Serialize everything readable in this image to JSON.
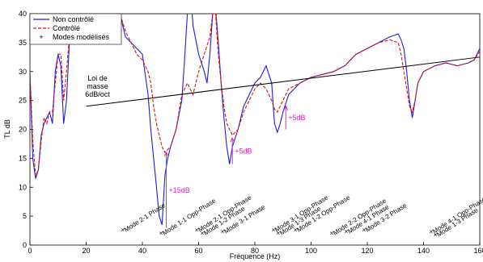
{
  "chart_data": {
    "type": "line",
    "xlabel": "Fréquence (Hz)",
    "ylabel": "TL dB",
    "xlim": [
      0,
      160
    ],
    "xticks": [
      0,
      20,
      40,
      60,
      80,
      100,
      120,
      140,
      160
    ],
    "ylim": [
      0,
      40
    ],
    "yticks": [
      0,
      5,
      10,
      15,
      20,
      25,
      30,
      35,
      40
    ],
    "legend": "upper left",
    "series": [
      {
        "name": "Non contrôlé",
        "color": "#1f1fd0",
        "style": "solid",
        "x": [
          0,
          1,
          2,
          3,
          4,
          5,
          6,
          7,
          8,
          9,
          10,
          11,
          12,
          13,
          14,
          15,
          20,
          30,
          32,
          34,
          36,
          38,
          40,
          42,
          43,
          44,
          45,
          46,
          47,
          48,
          49,
          50,
          52,
          54,
          55,
          56,
          57,
          58,
          60,
          62,
          63,
          64,
          65,
          66,
          67,
          68,
          69,
          70,
          71,
          72,
          74,
          76,
          78,
          80,
          82,
          84,
          86,
          87,
          88,
          89,
          90,
          92,
          96,
          100,
          104,
          108,
          112,
          116,
          120,
          124,
          128,
          131,
          132,
          133,
          134,
          135,
          136,
          137,
          138,
          140,
          144,
          148,
          152,
          156,
          158,
          160
        ],
        "values": [
          30,
          15,
          11.5,
          13,
          19,
          21,
          22,
          23,
          21,
          30,
          33,
          31,
          21,
          25,
          35,
          40,
          45,
          45,
          40,
          36,
          35,
          34,
          33,
          26,
          20,
          15,
          10,
          5,
          3.5,
          12,
          15,
          17,
          20,
          25,
          32,
          40,
          45,
          38,
          33,
          30,
          28,
          33,
          40,
          41,
          35,
          28,
          22,
          17,
          14,
          17,
          20,
          24,
          26,
          28,
          29,
          31,
          28,
          21,
          19.5,
          21,
          23,
          26,
          28,
          29,
          29.5,
          30,
          31,
          33,
          34,
          35,
          36,
          36.5,
          35.5,
          34,
          30,
          25,
          22,
          25,
          28,
          30,
          31,
          31.5,
          31,
          31.5,
          32,
          34
        ]
      },
      {
        "name": "Contrôlé",
        "color": "#e01010",
        "style": "dashed",
        "x": [
          0,
          1,
          2,
          3,
          4,
          5,
          6,
          7,
          8,
          9,
          10,
          11,
          12,
          13,
          14,
          15,
          20,
          30,
          32,
          34,
          36,
          38,
          40,
          42,
          43,
          44,
          45,
          46,
          47,
          48,
          50,
          52,
          54,
          56,
          58,
          60,
          62,
          64,
          65,
          66,
          67,
          68,
          69,
          70,
          72,
          74,
          76,
          78,
          80,
          82,
          84,
          86,
          87,
          88,
          90,
          92,
          96,
          100,
          104,
          108,
          112,
          116,
          120,
          124,
          128,
          131,
          132,
          133,
          134,
          135,
          136,
          137,
          138,
          140,
          144,
          148,
          152,
          156,
          158,
          160
        ],
        "values": [
          30,
          18,
          12,
          13,
          18,
          22,
          21,
          23,
          23,
          28,
          33,
          33,
          25,
          30,
          36,
          40,
          45,
          45,
          40,
          37,
          35,
          33,
          32,
          30,
          28,
          24,
          21,
          19,
          17,
          16,
          17,
          20,
          26,
          28,
          26,
          30,
          33,
          36,
          40,
          40,
          33,
          28,
          24,
          21,
          19,
          20,
          23,
          25,
          27,
          28,
          27,
          25,
          23.5,
          23,
          25,
          27,
          28,
          29,
          29.5,
          30,
          31,
          33,
          34,
          35,
          35.5,
          35,
          33,
          30,
          27,
          24,
          23,
          25,
          28,
          30,
          31,
          31.5,
          31,
          31.5,
          32,
          33.5
        ]
      }
    ],
    "modes_name": "Modes modélisés",
    "mass_law": {
      "label": "Loi de\nmasse\n6dB/oct",
      "x": [
        20,
        160
      ],
      "values": [
        24,
        32.5
      ]
    },
    "modes": [
      {
        "label": "Mode 2-1 Phase",
        "x": 33
      },
      {
        "label": "Mode 1-1 Opp-Phase",
        "x": 46.6
      },
      {
        "label": "Mode 2-1 Opp-Phase",
        "x": 59.3
      },
      {
        "label": "Mode 1-2 Phase",
        "x": 61.3
      },
      {
        "label": "Mode 3-1 Phase",
        "x": 68.5
      },
      {
        "label": "Mode 3-1 Opp-Phase",
        "x": 86.6
      },
      {
        "label": "Mode 1-3 Phase",
        "x": 88.3
      },
      {
        "label": "Mode 1-2 Opp-Phase",
        "x": 94.4
      },
      {
        "label": "Mode 2-2 Opp-Phase",
        "x": 107.3
      },
      {
        "label": "Mode 4-1 Phase",
        "x": 112.5
      },
      {
        "label": "Mode 3-2 Phase",
        "x": 118.8
      },
      {
        "label": "Mode 4-1 Opp-Phase",
        "x": 142.7
      },
      {
        "label": "Mode 1-3 Phase",
        "x": 144.2
      }
    ],
    "annotations": [
      {
        "text": "+15dB",
        "x": 48.5,
        "from": 3,
        "to": 16
      },
      {
        "text": "+5dB",
        "x": 72,
        "from": 14,
        "to": 18.5
      },
      {
        "text": "+5dB",
        "x": 91,
        "from": 20,
        "to": 24
      }
    ]
  }
}
